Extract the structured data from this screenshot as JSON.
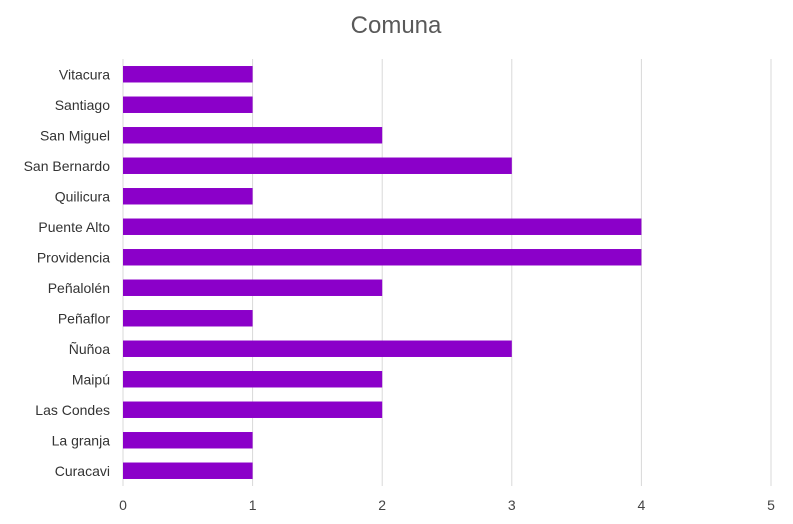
{
  "chart_data": {
    "type": "bar",
    "orientation": "horizontal",
    "title": "Comuna",
    "xlabel": "",
    "ylabel": "",
    "categories": [
      "Vitacura",
      "Santiago",
      "San Miguel",
      "San Bernardo",
      "Quilicura",
      "Puente Alto",
      "Providencia",
      "Peñalolén",
      "Peñaflor",
      "Ñuñoa",
      "Maipú",
      "Las Condes",
      "La granja",
      "Curacavi"
    ],
    "values": [
      1,
      1,
      2,
      3,
      1,
      4,
      4,
      2,
      1,
      3,
      2,
      2,
      1,
      1
    ],
    "xlim": [
      0,
      5
    ],
    "xticks": [
      "0",
      "1",
      "2",
      "3",
      "4",
      "5"
    ],
    "grid": true,
    "legend": "none",
    "bar_color": "#8B00C9",
    "grid_color": "#D9D9D9"
  }
}
